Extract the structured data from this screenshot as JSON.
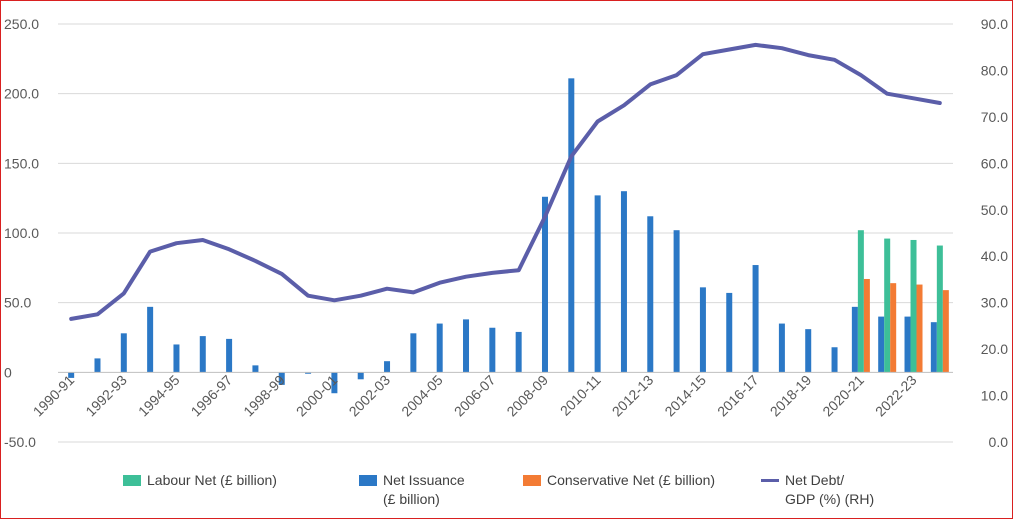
{
  "chart_data": {
    "type": "bar",
    "categories": [
      "1990-91",
      "1991-92",
      "1992-93",
      "1993-94",
      "1994-95",
      "1995-96",
      "1996-97",
      "1997-98",
      "1998-99",
      "1999-00",
      "2000-01",
      "2001-02",
      "2002-03",
      "2003-04",
      "2004-05",
      "2005-06",
      "2006-07",
      "2007-08",
      "2008-09",
      "2009-10",
      "2010-11",
      "2011-12",
      "2012-13",
      "2013-14",
      "2014-15",
      "2015-16",
      "2016-17",
      "2017-18",
      "2018-19",
      "2019-20",
      "2020-21",
      "2021-22",
      "2022-23",
      "2023-24"
    ],
    "tick_labels": [
      "1990-91",
      "1992-93",
      "1994-95",
      "1996-97",
      "1998-99",
      "2000-01",
      "2002-03",
      "2004-05",
      "2006-07",
      "2008-09",
      "2010-11",
      "2012-13",
      "2014-15",
      "2016-17",
      "2018-19",
      "2020-21",
      "2022-23"
    ],
    "y_left": {
      "lim": [
        -50,
        250
      ],
      "ticks": [
        "-50.0",
        "0",
        "50.0",
        "100.0",
        "150.0",
        "200.0",
        "250.0"
      ]
    },
    "y_right": {
      "lim": [
        0,
        90
      ],
      "ticks": [
        "0.0",
        "10.0",
        "20.0",
        "30.0",
        "40.0",
        "50.0",
        "60.0",
        "70.0",
        "80.0",
        "90.0"
      ]
    },
    "grid": "horizontal",
    "legend_position": "bottom",
    "series": [
      {
        "name": "Labour Net (£ billion)",
        "color": "#3dbf98",
        "axis": "left",
        "values": [
          null,
          null,
          null,
          null,
          null,
          null,
          null,
          null,
          null,
          null,
          null,
          null,
          null,
          null,
          null,
          null,
          null,
          null,
          null,
          null,
          null,
          null,
          null,
          null,
          null,
          null,
          null,
          null,
          null,
          null,
          102,
          96,
          95,
          91
        ]
      },
      {
        "name": "Net Issuance (£ billion)",
        "color": "#2b78c6",
        "axis": "left",
        "values": [
          -4,
          10,
          28,
          47,
          20,
          26,
          24,
          5,
          -9,
          -1,
          -15,
          -5,
          8,
          28,
          35,
          38,
          32,
          29,
          126,
          211,
          127,
          130,
          112,
          102,
          61,
          57,
          77,
          35,
          31,
          18,
          47,
          40,
          40,
          36
        ]
      },
      {
        "name": "Conservative Net (£ billion)",
        "color": "#f37b34",
        "axis": "left",
        "values": [
          null,
          null,
          null,
          null,
          null,
          null,
          null,
          null,
          null,
          null,
          null,
          null,
          null,
          null,
          null,
          null,
          null,
          null,
          null,
          null,
          null,
          null,
          null,
          null,
          null,
          null,
          null,
          null,
          null,
          null,
          67,
          64,
          63,
          59
        ]
      },
      {
        "name": "Net Debt/ GDP (%) (RH)",
        "color": "#5b5ea9",
        "axis": "right",
        "type": "line",
        "values": [
          26.5,
          27.5,
          32,
          41,
          42.8,
          43.5,
          41.5,
          39,
          36.2,
          31.5,
          30.5,
          31.5,
          33,
          32.2,
          34.3,
          35.6,
          36.4,
          37,
          48.5,
          61.5,
          69,
          72.5,
          77,
          79,
          83.5,
          84.5,
          85.5,
          84.8,
          83.3,
          82.3,
          79,
          75,
          74,
          73
        ]
      }
    ]
  },
  "legend": {
    "labour": "Labour Net (£ billion)",
    "issuance_line1": "Net Issuance",
    "issuance_line2": "(£ billion)",
    "conservative": "Conservative Net (£ billion)",
    "debt_line1": "Net Debt/",
    "debt_line2": "GDP (%) (RH)"
  }
}
